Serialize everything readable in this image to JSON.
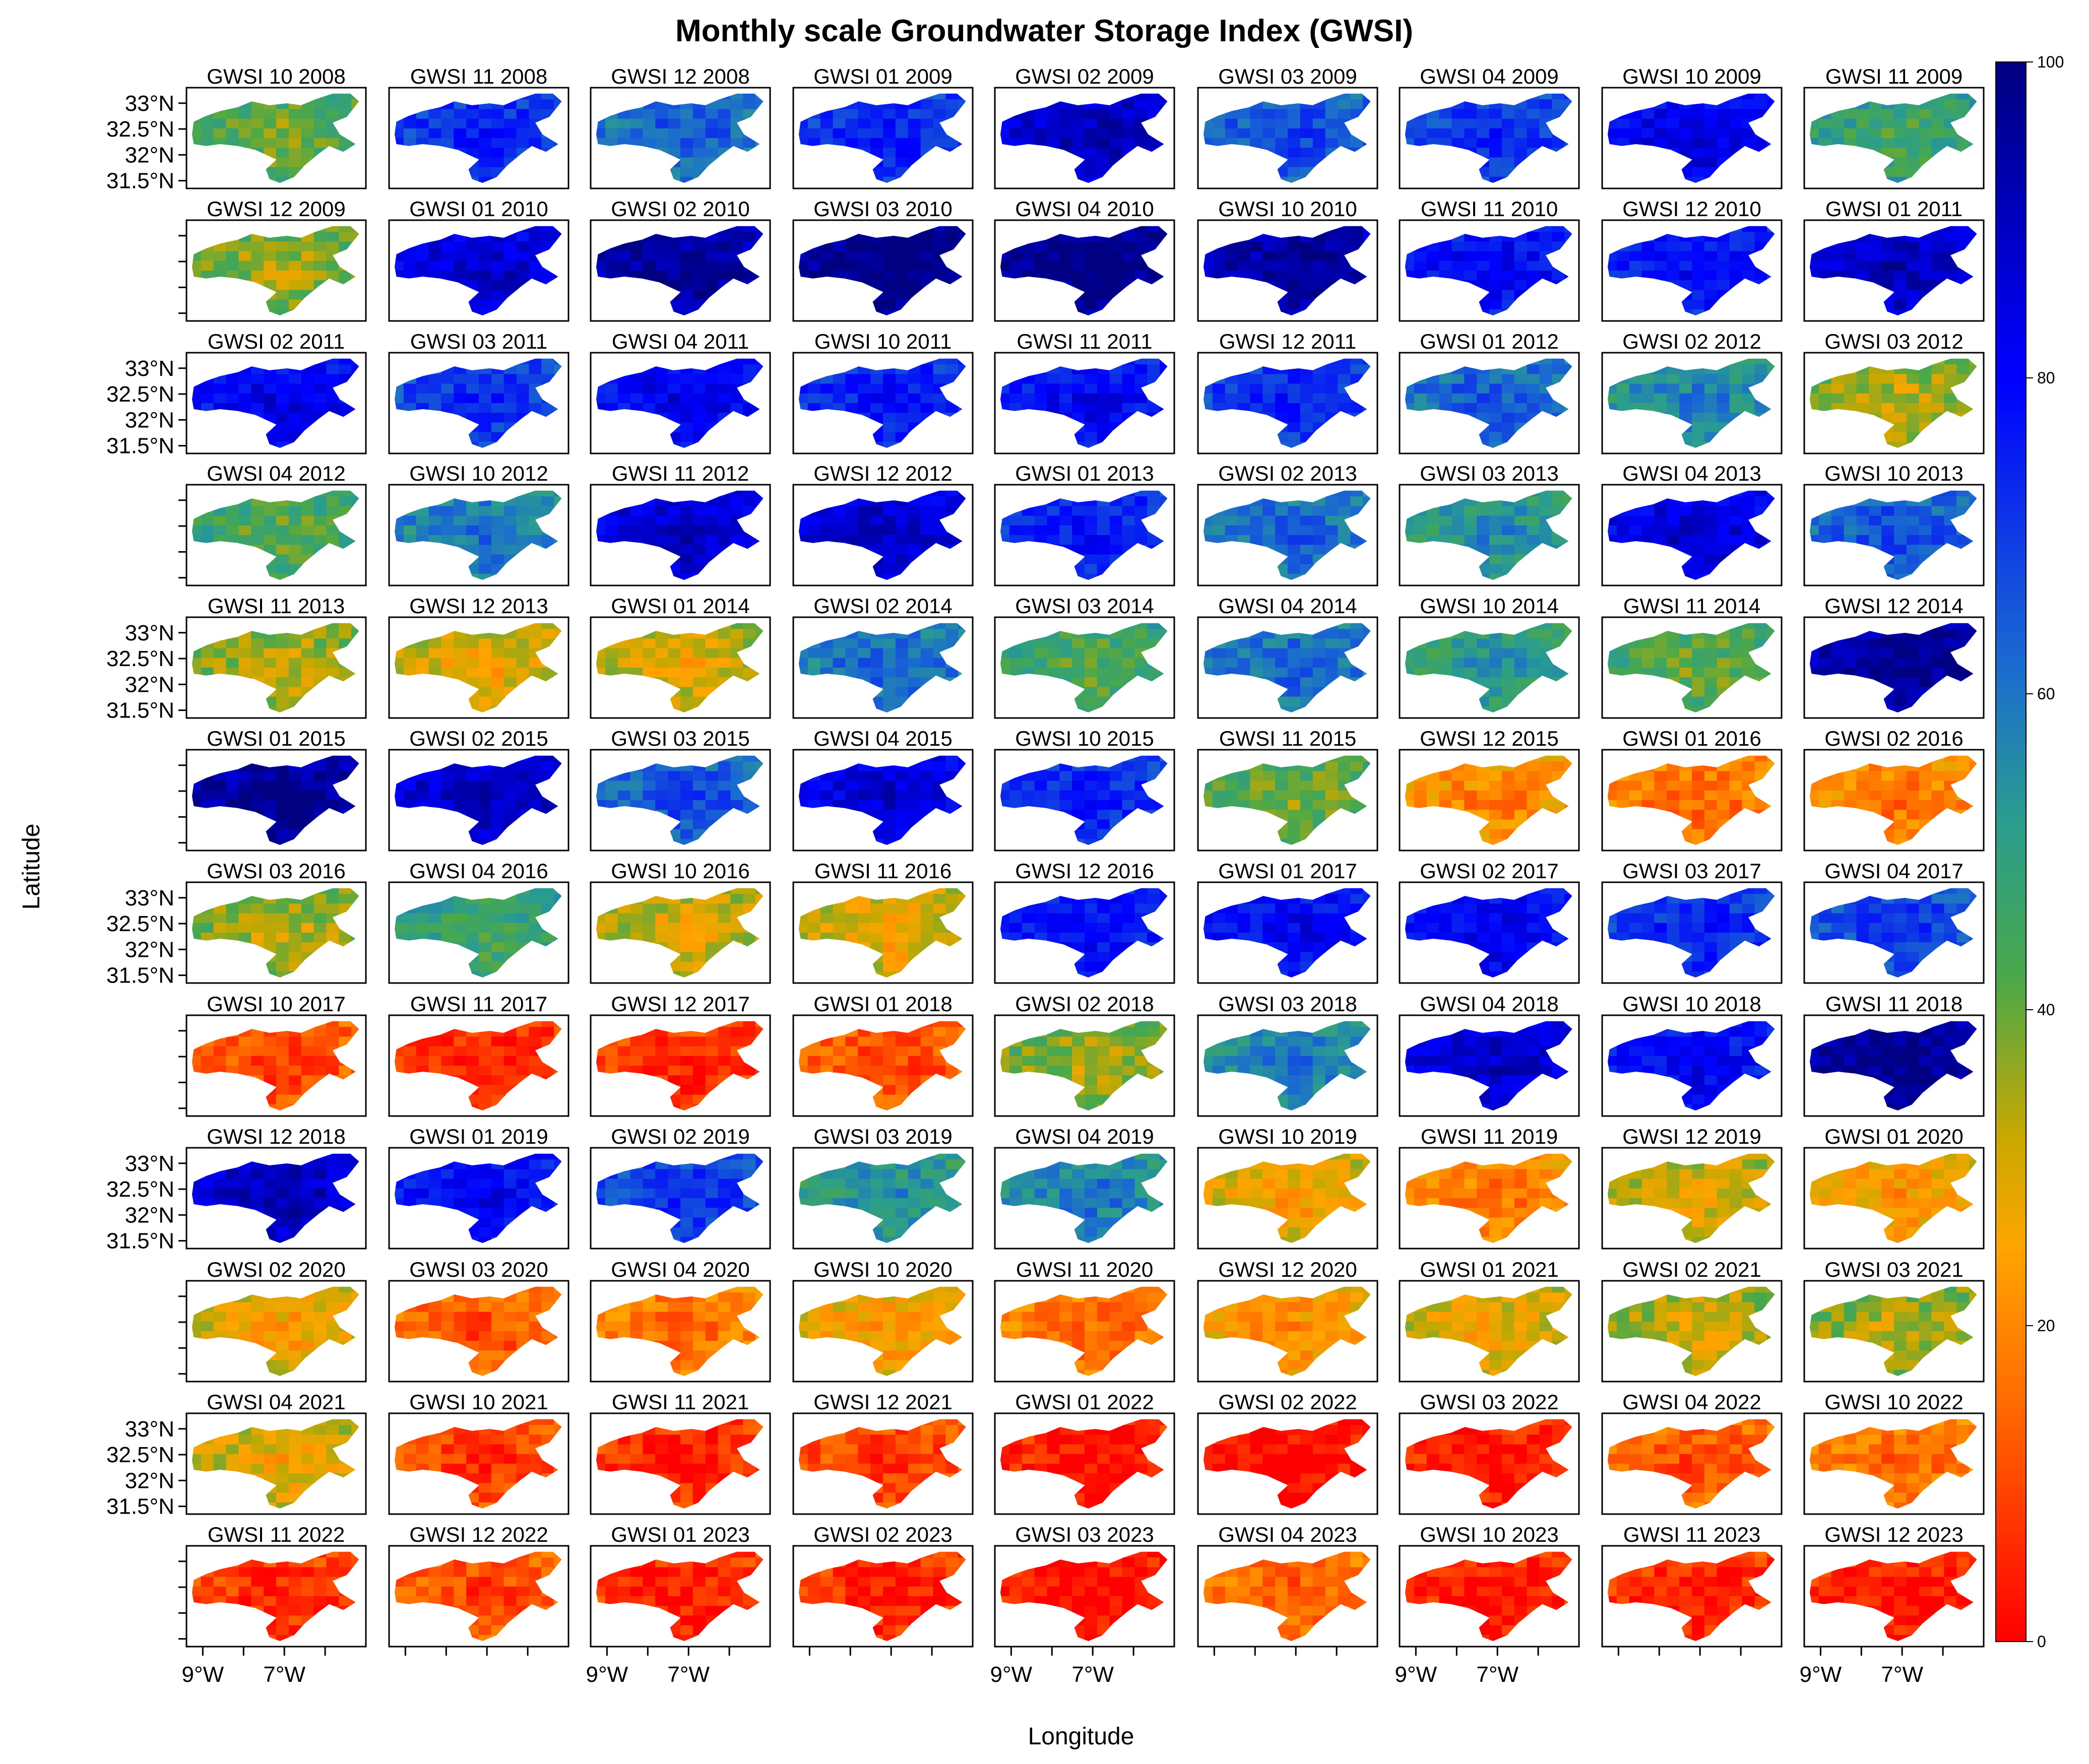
{
  "chart_data": {
    "type": "heatmap",
    "title": "Monthly scale Groundwater Storage Index (GWSI)",
    "xlabel": "Longitude",
    "ylabel": "Latitude",
    "panel_prefix": "GWSI",
    "panels": [
      {
        "label": "10 2008",
        "month": 10,
        "year": 2008,
        "mean": 42
      },
      {
        "label": "11 2008",
        "month": 11,
        "year": 2008,
        "mean": 72
      },
      {
        "label": "12 2008",
        "month": 12,
        "year": 2008,
        "mean": 62
      },
      {
        "label": "01 2009",
        "month": 1,
        "year": 2009,
        "mean": 72
      },
      {
        "label": "02 2009",
        "month": 2,
        "year": 2009,
        "mean": 88
      },
      {
        "label": "03 2009",
        "month": 3,
        "year": 2009,
        "mean": 65
      },
      {
        "label": "04 2009",
        "month": 4,
        "year": 2009,
        "mean": 70
      },
      {
        "label": "10 2009",
        "month": 10,
        "year": 2009,
        "mean": 82
      },
      {
        "label": "11 2009",
        "month": 11,
        "year": 2009,
        "mean": 48
      },
      {
        "label": "12 2009",
        "month": 12,
        "year": 2009,
        "mean": 38
      },
      {
        "label": "01 2010",
        "month": 1,
        "year": 2010,
        "mean": 85
      },
      {
        "label": "02 2010",
        "month": 2,
        "year": 2010,
        "mean": 94
      },
      {
        "label": "03 2010",
        "month": 3,
        "year": 2010,
        "mean": 98
      },
      {
        "label": "04 2010",
        "month": 4,
        "year": 2010,
        "mean": 98
      },
      {
        "label": "10 2010",
        "month": 10,
        "year": 2010,
        "mean": 94
      },
      {
        "label": "11 2010",
        "month": 11,
        "year": 2010,
        "mean": 78
      },
      {
        "label": "12 2010",
        "month": 12,
        "year": 2010,
        "mean": 76
      },
      {
        "label": "01 2011",
        "month": 1,
        "year": 2011,
        "mean": 88
      },
      {
        "label": "02 2011",
        "month": 2,
        "year": 2011,
        "mean": 80
      },
      {
        "label": "03 2011",
        "month": 3,
        "year": 2011,
        "mean": 70
      },
      {
        "label": "04 2011",
        "month": 4,
        "year": 2011,
        "mean": 80
      },
      {
        "label": "10 2011",
        "month": 10,
        "year": 2011,
        "mean": 74
      },
      {
        "label": "11 2011",
        "month": 11,
        "year": 2011,
        "mean": 78
      },
      {
        "label": "12 2011",
        "month": 12,
        "year": 2011,
        "mean": 72
      },
      {
        "label": "01 2012",
        "month": 1,
        "year": 2012,
        "mean": 62
      },
      {
        "label": "02 2012",
        "month": 2,
        "year": 2012,
        "mean": 55
      },
      {
        "label": "03 2012",
        "month": 3,
        "year": 2012,
        "mean": 36
      },
      {
        "label": "04 2012",
        "month": 4,
        "year": 2012,
        "mean": 45
      },
      {
        "label": "10 2012",
        "month": 10,
        "year": 2012,
        "mean": 58
      },
      {
        "label": "11 2012",
        "month": 11,
        "year": 2012,
        "mean": 86
      },
      {
        "label": "12 2012",
        "month": 12,
        "year": 2012,
        "mean": 86
      },
      {
        "label": "01 2013",
        "month": 1,
        "year": 2013,
        "mean": 74
      },
      {
        "label": "02 2013",
        "month": 2,
        "year": 2013,
        "mean": 60
      },
      {
        "label": "03 2013",
        "month": 3,
        "year": 2013,
        "mean": 52
      },
      {
        "label": "04 2013",
        "month": 4,
        "year": 2013,
        "mean": 84
      },
      {
        "label": "10 2013",
        "month": 10,
        "year": 2013,
        "mean": 64
      },
      {
        "label": "11 2013",
        "month": 11,
        "year": 2013,
        "mean": 36
      },
      {
        "label": "12 2013",
        "month": 12,
        "year": 2013,
        "mean": 30
      },
      {
        "label": "01 2014",
        "month": 1,
        "year": 2014,
        "mean": 32
      },
      {
        "label": "02 2014",
        "month": 2,
        "year": 2014,
        "mean": 60
      },
      {
        "label": "03 2014",
        "month": 3,
        "year": 2014,
        "mean": 46
      },
      {
        "label": "04 2014",
        "month": 4,
        "year": 2014,
        "mean": 60
      },
      {
        "label": "10 2014",
        "month": 10,
        "year": 2014,
        "mean": 50
      },
      {
        "label": "11 2014",
        "month": 11,
        "year": 2014,
        "mean": 44
      },
      {
        "label": "12 2014",
        "month": 12,
        "year": 2014,
        "mean": 95
      },
      {
        "label": "01 2015",
        "month": 1,
        "year": 2015,
        "mean": 95
      },
      {
        "label": "02 2015",
        "month": 2,
        "year": 2015,
        "mean": 88
      },
      {
        "label": "03 2015",
        "month": 3,
        "year": 2015,
        "mean": 64
      },
      {
        "label": "04 2015",
        "month": 4,
        "year": 2015,
        "mean": 84
      },
      {
        "label": "10 2015",
        "month": 10,
        "year": 2015,
        "mean": 72
      },
      {
        "label": "11 2015",
        "month": 11,
        "year": 2015,
        "mean": 42
      },
      {
        "label": "12 2015",
        "month": 12,
        "year": 2015,
        "mean": 22
      },
      {
        "label": "01 2016",
        "month": 1,
        "year": 2016,
        "mean": 18
      },
      {
        "label": "02 2016",
        "month": 2,
        "year": 2016,
        "mean": 20
      },
      {
        "label": "03 2016",
        "month": 3,
        "year": 2016,
        "mean": 36
      },
      {
        "label": "04 2016",
        "month": 4,
        "year": 2016,
        "mean": 48
      },
      {
        "label": "10 2016",
        "month": 10,
        "year": 2016,
        "mean": 32
      },
      {
        "label": "11 2016",
        "month": 11,
        "year": 2016,
        "mean": 30
      },
      {
        "label": "12 2016",
        "month": 12,
        "year": 2016,
        "mean": 76
      },
      {
        "label": "01 2017",
        "month": 1,
        "year": 2017,
        "mean": 78
      },
      {
        "label": "02 2017",
        "month": 2,
        "year": 2017,
        "mean": 80
      },
      {
        "label": "03 2017",
        "month": 3,
        "year": 2017,
        "mean": 72
      },
      {
        "label": "04 2017",
        "month": 4,
        "year": 2017,
        "mean": 68
      },
      {
        "label": "10 2017",
        "month": 10,
        "year": 2017,
        "mean": 12
      },
      {
        "label": "11 2017",
        "month": 11,
        "year": 2017,
        "mean": 6
      },
      {
        "label": "12 2017",
        "month": 12,
        "year": 2017,
        "mean": 8
      },
      {
        "label": "01 2018",
        "month": 1,
        "year": 2018,
        "mean": 12
      },
      {
        "label": "02 2018",
        "month": 2,
        "year": 2018,
        "mean": 38
      },
      {
        "label": "03 2018",
        "month": 3,
        "year": 2018,
        "mean": 56
      },
      {
        "label": "04 2018",
        "month": 4,
        "year": 2018,
        "mean": 86
      },
      {
        "label": "10 2018",
        "month": 10,
        "year": 2018,
        "mean": 78
      },
      {
        "label": "11 2018",
        "month": 11,
        "year": 2018,
        "mean": 96
      },
      {
        "label": "12 2018",
        "month": 12,
        "year": 2018,
        "mean": 88
      },
      {
        "label": "01 2019",
        "month": 1,
        "year": 2019,
        "mean": 78
      },
      {
        "label": "02 2019",
        "month": 2,
        "year": 2019,
        "mean": 70
      },
      {
        "label": "03 2019",
        "month": 3,
        "year": 2019,
        "mean": 52
      },
      {
        "label": "04 2019",
        "month": 4,
        "year": 2019,
        "mean": 56
      },
      {
        "label": "10 2019",
        "month": 10,
        "year": 2019,
        "mean": 28
      },
      {
        "label": "11 2019",
        "month": 11,
        "year": 2019,
        "mean": 20
      },
      {
        "label": "12 2019",
        "month": 12,
        "year": 2019,
        "mean": 32
      },
      {
        "label": "01 2020",
        "month": 1,
        "year": 2020,
        "mean": 26
      },
      {
        "label": "02 2020",
        "month": 2,
        "year": 2020,
        "mean": 28
      },
      {
        "label": "03 2020",
        "month": 3,
        "year": 2020,
        "mean": 14
      },
      {
        "label": "04 2020",
        "month": 4,
        "year": 2020,
        "mean": 18
      },
      {
        "label": "10 2020",
        "month": 10,
        "year": 2020,
        "mean": 26
      },
      {
        "label": "11 2020",
        "month": 11,
        "year": 2020,
        "mean": 18
      },
      {
        "label": "12 2020",
        "month": 12,
        "year": 2020,
        "mean": 24
      },
      {
        "label": "01 2021",
        "month": 1,
        "year": 2021,
        "mean": 30
      },
      {
        "label": "02 2021",
        "month": 2,
        "year": 2021,
        "mean": 34
      },
      {
        "label": "03 2021",
        "month": 3,
        "year": 2021,
        "mean": 36
      },
      {
        "label": "04 2021",
        "month": 4,
        "year": 2021,
        "mean": 30
      },
      {
        "label": "10 2021",
        "month": 10,
        "year": 2021,
        "mean": 10
      },
      {
        "label": "11 2021",
        "month": 11,
        "year": 2021,
        "mean": 6
      },
      {
        "label": "12 2021",
        "month": 12,
        "year": 2021,
        "mean": 10
      },
      {
        "label": "01 2022",
        "month": 1,
        "year": 2022,
        "mean": 4
      },
      {
        "label": "02 2022",
        "month": 2,
        "year": 2022,
        "mean": 2
      },
      {
        "label": "03 2022",
        "month": 3,
        "year": 2022,
        "mean": 4
      },
      {
        "label": "04 2022",
        "month": 4,
        "year": 2022,
        "mean": 14
      },
      {
        "label": "10 2022",
        "month": 10,
        "year": 2022,
        "mean": 18
      },
      {
        "label": "11 2022",
        "month": 11,
        "year": 2022,
        "mean": 8
      },
      {
        "label": "12 2022",
        "month": 12,
        "year": 2022,
        "mean": 12
      },
      {
        "label": "01 2023",
        "month": 1,
        "year": 2023,
        "mean": 6
      },
      {
        "label": "02 2023",
        "month": 2,
        "year": 2023,
        "mean": 6
      },
      {
        "label": "03 2023",
        "month": 3,
        "year": 2023,
        "mean": 2
      },
      {
        "label": "04 2023",
        "month": 4,
        "year": 2023,
        "mean": 16
      },
      {
        "label": "10 2023",
        "month": 10,
        "year": 2023,
        "mean": 4
      },
      {
        "label": "11 2023",
        "month": 11,
        "year": 2023,
        "mean": 6
      },
      {
        "label": "12 2023",
        "month": 12,
        "year": 2023,
        "mean": 4
      }
    ],
    "y_tick_labels": [
      "33°N",
      "32.5°N",
      "32°N",
      "31.5°N"
    ],
    "y_ticks": [
      33,
      32.5,
      32,
      31.5
    ],
    "ylim": [
      31.35,
      33.3
    ],
    "x_tick_labels": [
      "9°W",
      "7°W"
    ],
    "x_ticks": [
      -9,
      -7
    ],
    "xlim": [
      -9.4,
      -5.0
    ],
    "colorbar": {
      "range": [
        0,
        100
      ],
      "ticks": [
        0,
        20,
        40,
        60,
        80,
        100
      ],
      "colors": [
        {
          "value": 0,
          "color": "#ff0000"
        },
        {
          "value": 15,
          "color": "#ff6a00"
        },
        {
          "value": 25,
          "color": "#ffa500"
        },
        {
          "value": 32,
          "color": "#c8a800"
        },
        {
          "value": 42,
          "color": "#4aa84a"
        },
        {
          "value": 52,
          "color": "#2a9d8f"
        },
        {
          "value": 62,
          "color": "#1a6ad0"
        },
        {
          "value": 80,
          "color": "#0000ff"
        },
        {
          "value": 100,
          "color": "#000080"
        }
      ]
    },
    "grid": false,
    "legend": "right colorbar"
  }
}
